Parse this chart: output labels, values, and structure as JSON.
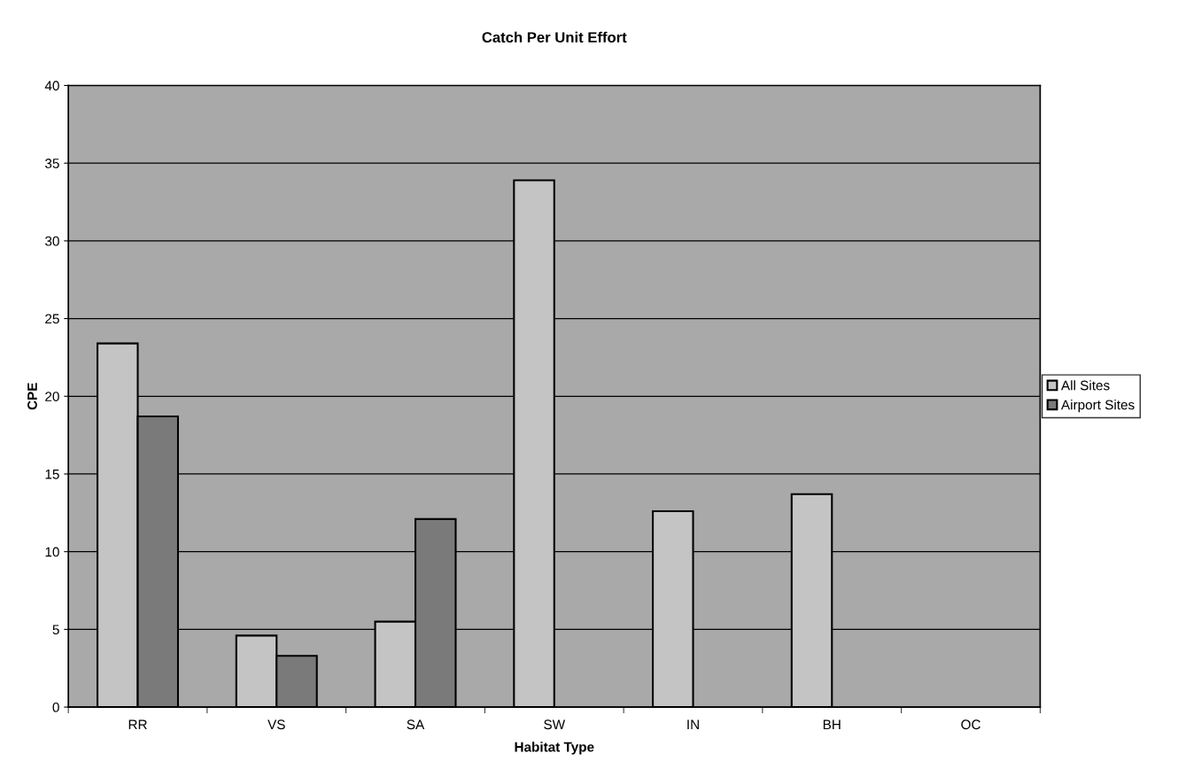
{
  "chart_data": {
    "type": "bar",
    "title": "Catch Per Unit Effort",
    "xlabel": "Habitat Type",
    "ylabel": "CPE",
    "categories": [
      "RR",
      "VS",
      "SA",
      "SW",
      "IN",
      "BH",
      "OC"
    ],
    "series": [
      {
        "name": "All Sites",
        "color": "#c4c4c4",
        "values": [
          23.4,
          4.6,
          5.5,
          33.9,
          12.6,
          13.7,
          null
        ]
      },
      {
        "name": "Airport Sites",
        "color": "#7a7a7a",
        "values": [
          18.7,
          3.3,
          12.1,
          null,
          null,
          null,
          null
        ]
      }
    ],
    "ylim": [
      0,
      40
    ],
    "yticks": [
      0,
      5,
      10,
      15,
      20,
      25,
      30,
      35,
      40
    ],
    "grid": "y",
    "legend": "right"
  }
}
